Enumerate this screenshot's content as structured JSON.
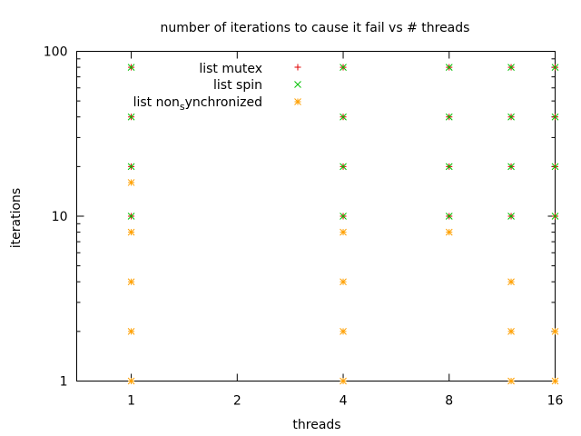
{
  "chart_data": {
    "type": "scatter",
    "title": "number of iterations to cause it fail vs # threads",
    "xlabel": "threads",
    "ylabel": "iterations",
    "x_scale": "log2",
    "y_scale": "log10",
    "xlim": [
      0.7,
      16
    ],
    "ylim": [
      1,
      100
    ],
    "x_ticks": [
      1,
      2,
      4,
      8,
      16
    ],
    "y_ticks": [
      1,
      10,
      100
    ],
    "grid": false,
    "legend_position": "top-left",
    "series": [
      {
        "name": "list mutex",
        "marker": "+",
        "color": "#e00000",
        "points": [
          [
            1,
            10
          ],
          [
            1,
            20
          ],
          [
            1,
            40
          ],
          [
            1,
            80
          ],
          [
            4,
            10
          ],
          [
            4,
            20
          ],
          [
            4,
            40
          ],
          [
            4,
            80
          ],
          [
            8,
            10
          ],
          [
            8,
            20
          ],
          [
            8,
            40
          ],
          [
            8,
            80
          ],
          [
            12,
            10
          ],
          [
            12,
            20
          ],
          [
            12,
            40
          ],
          [
            12,
            80
          ],
          [
            16,
            10
          ],
          [
            16,
            20
          ],
          [
            16,
            40
          ],
          [
            16,
            80
          ]
        ]
      },
      {
        "name": "list spin",
        "marker": "x",
        "color": "#00c000",
        "points": [
          [
            1,
            10
          ],
          [
            1,
            20
          ],
          [
            1,
            40
          ],
          [
            1,
            80
          ],
          [
            4,
            10
          ],
          [
            4,
            20
          ],
          [
            4,
            40
          ],
          [
            4,
            80
          ],
          [
            8,
            10
          ],
          [
            8,
            20
          ],
          [
            8,
            40
          ],
          [
            8,
            80
          ],
          [
            12,
            10
          ],
          [
            12,
            20
          ],
          [
            12,
            40
          ],
          [
            12,
            80
          ],
          [
            16,
            10
          ],
          [
            16,
            20
          ],
          [
            16,
            40
          ],
          [
            16,
            80
          ]
        ]
      },
      {
        "name": "list non",
        "name_subscript": "s",
        "name_suffix": "ynchronized",
        "marker": "*",
        "color": "#ffa000",
        "points": [
          [
            1,
            1
          ],
          [
            1,
            2
          ],
          [
            1,
            4
          ],
          [
            1,
            8
          ],
          [
            1,
            16
          ],
          [
            4,
            1
          ],
          [
            4,
            2
          ],
          [
            4,
            4
          ],
          [
            4,
            8
          ],
          [
            8,
            8
          ],
          [
            12,
            1
          ],
          [
            12,
            2
          ],
          [
            12,
            4
          ],
          [
            16,
            1
          ],
          [
            16,
            2
          ]
        ]
      }
    ]
  }
}
